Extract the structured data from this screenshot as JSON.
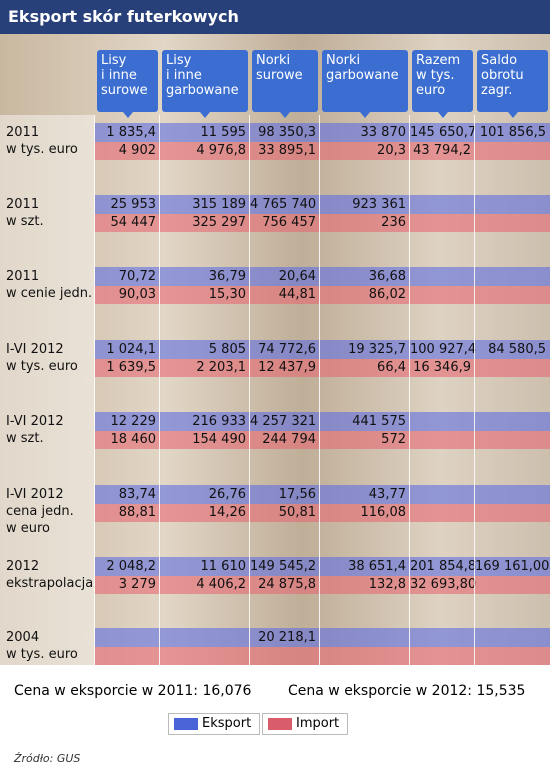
{
  "header": {
    "title": "Eksport skór futerkowych"
  },
  "table": {
    "columns": [
      [
        "Lisy",
        "i inne",
        "surowe"
      ],
      [
        "Lisy",
        "i inne",
        "garbowane"
      ],
      [
        "Norki",
        "surowe"
      ],
      [
        "Norki",
        "garbowane"
      ],
      [
        "Razem",
        "w tys.",
        "euro"
      ],
      [
        "Saldo",
        "obrotu",
        "zagr."
      ]
    ],
    "groups": [
      {
        "label": [
          "2011",
          "w tys. euro"
        ],
        "export": [
          "1 835,4",
          "11 595",
          "98 350,3",
          "33 870",
          "145 650,7",
          "101 856,5"
        ],
        "import": [
          "4 902",
          "4 976,8",
          "33 895,1",
          "20,3",
          "43 794,2",
          null
        ]
      },
      {
        "label": [
          "2011",
          "w szt."
        ],
        "export": [
          "25 953",
          "315 189",
          "4 765 740",
          "923 361",
          null,
          null
        ],
        "import": [
          "54 447",
          "325 297",
          "756 457",
          "236",
          null,
          null
        ]
      },
      {
        "label": [
          "2011",
          "w cenie jedn."
        ],
        "export": [
          "70,72",
          "36,79",
          "20,64",
          "36,68",
          null,
          null
        ],
        "import": [
          "90,03",
          "15,30",
          "44,81",
          "86,02",
          null,
          null
        ]
      },
      {
        "label": [
          "I-VI 2012",
          "w tys. euro"
        ],
        "export": [
          "1 024,1",
          "5 805",
          "74 772,6",
          "19 325,7",
          "100 927,4",
          "84 580,5"
        ],
        "import": [
          "1 639,5",
          "2 203,1",
          "12 437,9",
          "66,4",
          "16 346,9",
          null
        ]
      },
      {
        "label": [
          "I-VI 2012",
          "w szt."
        ],
        "export": [
          "12 229",
          "216 933",
          "4 257 321",
          "441 575",
          null,
          null
        ],
        "import": [
          "18 460",
          "154 490",
          "244 794",
          "572",
          null,
          null
        ]
      },
      {
        "label": [
          "I-VI 2012",
          "cena jedn.",
          "w euro"
        ],
        "export": [
          "83,74",
          "26,76",
          "17,56",
          "43,77",
          null,
          null
        ],
        "import": [
          "88,81",
          "14,26",
          "50,81",
          "116,08",
          null,
          null
        ]
      },
      {
        "label": [
          "2012",
          "ekstrapolacja"
        ],
        "export": [
          "2 048,2",
          "11 610",
          "149 545,2",
          "38 651,4",
          "201 854,8",
          "169 161,00"
        ],
        "import": [
          "3 279",
          "4 406,2",
          "24 875,8",
          "132,8",
          "32 693,80",
          null
        ]
      },
      {
        "label": [
          "2004",
          "w tys. euro"
        ],
        "export": [
          null,
          null,
          "20 218,1",
          null,
          null,
          null
        ],
        "import": [
          null,
          null,
          null,
          null,
          null,
          null
        ]
      }
    ]
  },
  "notes": [
    "Cena w eksporcie w 2011: 16,076",
    "Cena w eksporcie w 2012: 15,535"
  ],
  "legend": [
    "Eksport",
    "Import"
  ],
  "source": "Źródło: GUS"
}
